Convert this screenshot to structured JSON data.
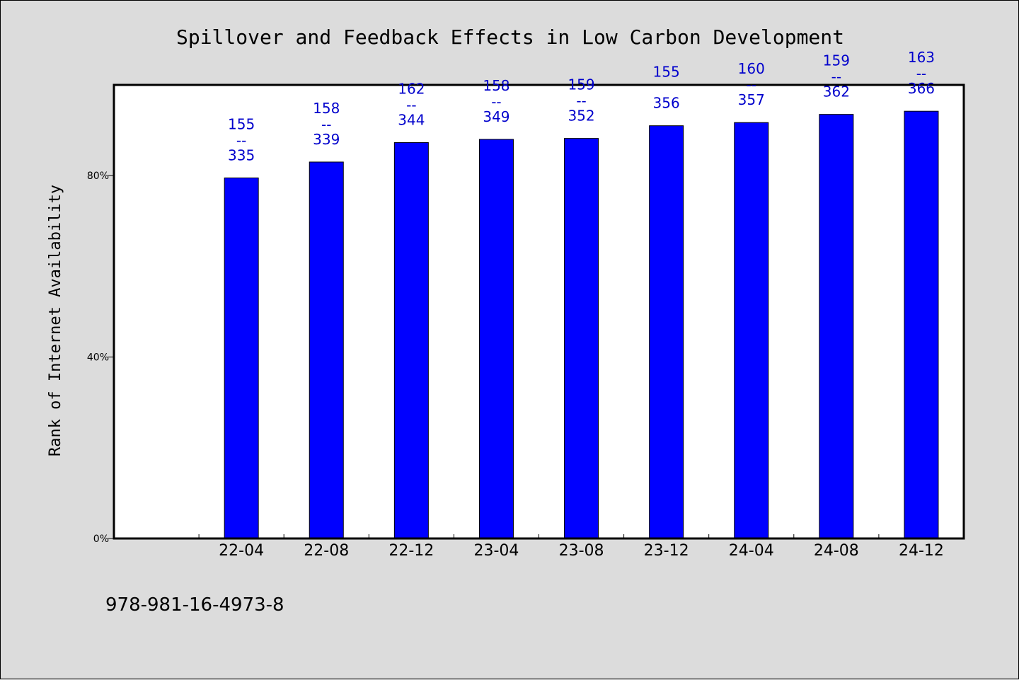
{
  "chart_data": {
    "type": "bar",
    "title": "Spillover and Feedback Effects in Low Carbon Development",
    "xlabel": "",
    "ylabel": "Rank of Internet Availability",
    "categories": [
      "22-04",
      "22-08",
      "22-12",
      "23-04",
      "23-08",
      "23-12",
      "24-04",
      "24-08",
      "24-12"
    ],
    "values": [
      79.5,
      83.0,
      87.3,
      88.0,
      88.2,
      91.0,
      91.7,
      93.5,
      94.2
    ],
    "data_labels": [
      {
        "top": "155",
        "sep": "--",
        "bottom": "335"
      },
      {
        "top": "158",
        "sep": "--",
        "bottom": "339"
      },
      {
        "top": "162",
        "sep": "--",
        "bottom": "344"
      },
      {
        "top": "158",
        "sep": "--",
        "bottom": "349"
      },
      {
        "top": "159",
        "sep": "--",
        "bottom": "352"
      },
      {
        "top": "155",
        "sep": "",
        "bottom": "356"
      },
      {
        "top": "160",
        "sep": "--",
        "bottom": "357"
      },
      {
        "top": "159",
        "sep": "--",
        "bottom": "362"
      },
      {
        "top": "163",
        "sep": "--",
        "bottom": "366"
      }
    ],
    "yticks": [
      0,
      40,
      80
    ],
    "ytick_labels": [
      "0%",
      "40%",
      "80%"
    ],
    "ylim": [
      0,
      100
    ],
    "grid": false,
    "bar_color": "#0000ff",
    "label_color": "#0000cc",
    "background_color": "#dcdcdc",
    "plot_background": "#ffffff"
  },
  "footer": {
    "isbn": "978-981-16-4973-8"
  }
}
